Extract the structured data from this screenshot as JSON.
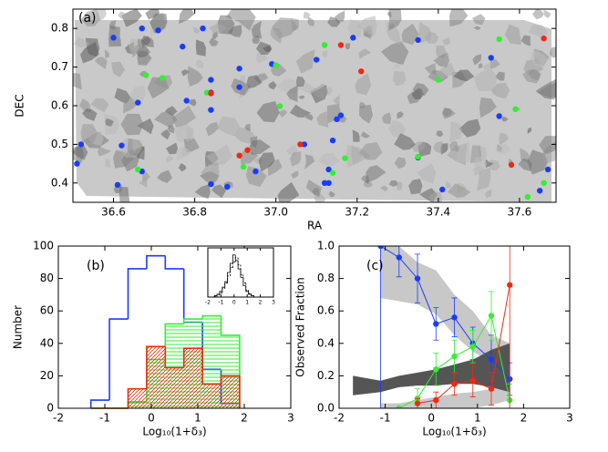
{
  "chart_data": [
    {
      "type": "scatter",
      "title": "(a)",
      "xlabel": "RA",
      "ylabel": "DEC",
      "xlim": [
        36.5,
        37.69
      ],
      "ylim": [
        0.35,
        0.85
      ],
      "xticks": [
        36.6,
        36.8,
        {
          "value": 37,
          "label": "37.0"
        },
        37.2,
        37.4,
        37.6
      ],
      "yticks": [
        0.4,
        0.5,
        0.6,
        0.7,
        0.8
      ],
      "series": [
        {
          "color": "#1a3cff",
          "x": [
            36.6,
            36.67,
            36.71,
            36.77,
            36.82,
            36.84,
            36.91,
            36.84,
            36.78,
            36.66,
            36.91,
            36.84,
            36.52,
            36.51,
            36.61,
            36.62,
            36.67,
            36.84,
            36.88,
            36.95,
            36.99,
            37.07,
            37.1,
            37.16,
            37.15,
            37.14,
            37.12,
            37.13,
            37.13,
            37.19,
            37.35,
            37.35,
            37.41,
            37.53,
            37.55,
            37.67,
            37.65
          ],
          "values": [
            0.776,
            0.8,
            0.795,
            0.753,
            0.8,
            0.667,
            0.696,
            0.634,
            0.613,
            0.608,
            0.648,
            0.589,
            0.5,
            0.45,
            0.395,
            0.497,
            0.43,
            0.397,
            0.39,
            0.43,
            0.708,
            0.5,
            0.719,
            0.575,
            0.565,
            0.51,
            0.4,
            0.4,
            0.435,
            0.776,
            0.77,
            0.466,
            0.383,
            0.724,
            0.573,
            0.435,
            0.38
          ]
        },
        {
          "color": "#33ee33",
          "x": [
            36.68,
            36.72,
            36.83,
            37.0,
            37.12,
            37.01,
            36.92,
            36.66,
            37.14,
            37.17,
            37.4,
            37.55,
            37.59,
            37.35,
            37.66,
            37.62
          ],
          "values": [
            0.679,
            0.672,
            0.634,
            0.705,
            0.757,
            0.599,
            0.442,
            0.435,
            0.426,
            0.464,
            0.667,
            0.772,
            0.591,
            0.468,
            0.4,
            0.364
          ]
        },
        {
          "color": "#ee2a10",
          "x": [
            36.84,
            36.91,
            36.93,
            37.06,
            37.16,
            37.21,
            37.66,
            37.58
          ],
          "values": [
            0.632,
            0.471,
            0.485,
            0.5,
            0.757,
            0.689,
            0.774,
            0.447
          ]
        }
      ]
    },
    {
      "type": "histogram",
      "title": "(b)",
      "xlabel": "Log₁₀(1+δ₃)",
      "ylabel": "Number",
      "xlim": [
        -2,
        3
      ],
      "ylim": [
        0,
        100
      ],
      "xticks": [
        -2,
        -1,
        0,
        1,
        2,
        3
      ],
      "yticks": [
        0,
        20,
        40,
        60,
        80,
        100
      ],
      "bins": [
        -1.3,
        -0.9,
        -0.5,
        -0.1,
        0.3,
        0.7,
        1.1,
        1.5,
        1.9
      ],
      "series": [
        {
          "color": "#1a3cff",
          "values": [
            5,
            55,
            86,
            94,
            86,
            53,
            24,
            3
          ]
        },
        {
          "color": "#33ee33",
          "hatch": "horizontal",
          "values": [
            0,
            0,
            4,
            30,
            52,
            55,
            57,
            45
          ]
        },
        {
          "color": "#ee2a10",
          "hatch": "diagonal",
          "values": [
            0,
            0,
            12,
            38,
            25,
            37,
            15,
            20
          ]
        }
      ],
      "inset": {
        "type": "histogram",
        "xlim": [
          -2,
          3
        ],
        "ylim": [
          0,
          70
        ],
        "xticks": [
          -2,
          -1,
          0,
          1,
          2,
          3
        ],
        "bins": [
          -1.5,
          -1.3,
          -1.1,
          -0.9,
          -0.7,
          -0.5,
          -0.3,
          -0.1,
          0.1,
          0.3,
          0.5,
          0.7,
          0.9,
          1.1,
          1.3,
          1.5
        ],
        "series": [
          {
            "color": "#000000",
            "values": [
              2,
              4,
              8,
              14,
              22,
              35,
              48,
              60,
              52,
              40,
              28,
              16,
              8,
              4,
              2
            ]
          },
          {
            "color": "#000000",
            "dash": true,
            "values": [
              1,
              3,
              6,
              12,
              20,
              30,
              42,
              50,
              56,
              46,
              32,
              20,
              10,
              5,
              2
            ]
          }
        ]
      }
    },
    {
      "type": "line",
      "title": "(c)",
      "xlabel": "Log₁₀(1+δ₃)",
      "ylabel": "Observed Fraction",
      "xlim": [
        -2,
        3
      ],
      "ylim": [
        0,
        1
      ],
      "xticks": [
        -2,
        -1,
        0,
        1,
        2,
        3
      ],
      "yticks": [
        {
          "value": 0,
          "label": "0.0"
        },
        0.2,
        0.4,
        0.6,
        0.8,
        {
          "value": 1,
          "label": "1.0"
        }
      ],
      "bands": [
        {
          "color": "#c8c8c8",
          "x": [
            -1.1,
            -0.7,
            -0.3,
            0.1,
            0.5,
            0.9,
            1.3,
            1.7
          ],
          "lower": [
            0.68,
            0.66,
            0.64,
            0.58,
            0.45,
            0.35,
            0.28,
            0.2
          ],
          "upper": [
            1,
            1,
            0.9,
            0.85,
            0.7,
            0.6,
            0.45,
            0.4
          ]
        },
        {
          "color": "#c8c8c8",
          "x": [
            -1.1,
            -0.7,
            -0.3,
            0.1,
            0.5,
            0.9,
            1.3,
            1.7
          ],
          "lower": [
            0,
            0,
            0,
            0,
            0,
            0,
            0.02,
            0.05
          ],
          "upper": [
            0.03,
            0.03,
            0.05,
            0.07,
            0.09,
            0.1,
            0.12,
            0.15
          ]
        },
        {
          "color": "#555555",
          "x": [
            -1.7,
            -1.1,
            -0.7,
            -0.3,
            0.1,
            0.5,
            0.9,
            1.3,
            1.7
          ],
          "lower": [
            0.08,
            0.1,
            0.13,
            0.14,
            0.14,
            0.15,
            0.15,
            0.13,
            0.1
          ],
          "upper": [
            0.2,
            0.17,
            0.2,
            0.22,
            0.24,
            0.27,
            0.3,
            0.36,
            0.4
          ]
        }
      ],
      "series": [
        {
          "color": "#1a3cff",
          "x": [
            -1.1,
            -0.7,
            -0.3,
            0.1,
            0.5,
            0.9,
            1.3,
            1.7
          ],
          "values": [
            1,
            0.93,
            0.8,
            0.52,
            0.56,
            0.4,
            0.3,
            0.18
          ],
          "errors": [
            1,
            0.12,
            0.15,
            0.1,
            0.12,
            0.1,
            0.15,
            0.1
          ]
        },
        {
          "color": "#33ee33",
          "x": [
            -0.7,
            -0.3,
            0.1,
            0.5,
            0.9,
            1.3,
            1.7
          ],
          "values": [
            0,
            0.06,
            0.24,
            0.32,
            0.38,
            0.57,
            0.05
          ],
          "errors": [
            0,
            0.06,
            0.1,
            0.1,
            0.1,
            0.15,
            0.1
          ]
        },
        {
          "color": "#ee2a10",
          "x": [
            -0.3,
            0.1,
            0.5,
            0.9,
            1.3,
            1.7
          ],
          "values": [
            0.03,
            0.05,
            0.15,
            0.17,
            0.12,
            0.76
          ],
          "errors": [
            0.03,
            0.05,
            0.07,
            0.1,
            0.1,
            0.76
          ]
        }
      ]
    }
  ]
}
